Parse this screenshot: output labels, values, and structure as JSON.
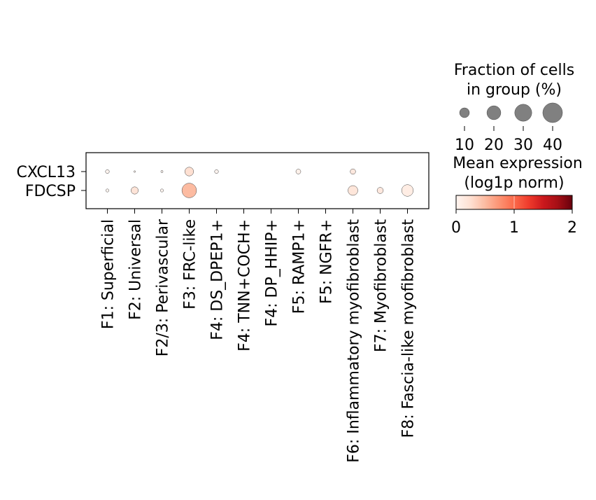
{
  "chart_data": {
    "type": "dotplot",
    "genes": [
      "CXCL13",
      "FDCSP"
    ],
    "groups": [
      "F1: Superficial",
      "F2: Universal",
      "F2/3: Perivascular",
      "F3: FRC-like",
      "F4: DS_DPEP1+",
      "F4: TNN+COCH+",
      "F4: DP_HHIP+",
      "F5: RAMP1+",
      "F5: NGFR+",
      "F6: Inflammatory myofibroblast",
      "F7: Myofibroblast",
      "F8: Fascia-like myofibroblast"
    ],
    "fraction_pct": [
      [
        1.5,
        0.3,
        0.5,
        8.0,
        1.5,
        0,
        0,
        2.5,
        0,
        3.0,
        0,
        0
      ],
      [
        1.0,
        5.5,
        1.0,
        22.0,
        0,
        0,
        0,
        0,
        0,
        10.0,
        4.0,
        14.0
      ]
    ],
    "mean_expression": [
      [
        0.0,
        0.0,
        0.0,
        0.25,
        0.0,
        0,
        0,
        0.05,
        0,
        0.15,
        0,
        0
      ],
      [
        0.0,
        0.2,
        0.0,
        0.5,
        0,
        0,
        0,
        0,
        0,
        0.18,
        0.15,
        0.1
      ]
    ],
    "size_legend": {
      "title_line1": "Fraction of cells",
      "title_line2": "in group (%)",
      "values": [
        10,
        20,
        30,
        40
      ],
      "labels": [
        "10",
        "20",
        "30",
        "40"
      ],
      "dot_color": "#808080"
    },
    "color_legend": {
      "title_line1": "Mean expression",
      "title_line2": "(log1p norm)",
      "vmin": 0,
      "vmax": 2,
      "ticks": [
        0,
        1,
        2
      ],
      "tick_labels": [
        "0",
        "1",
        "2"
      ],
      "colormap": "Reds",
      "colors": [
        "#fff5f0",
        "#fee0d2",
        "#fcbba1",
        "#fc9272",
        "#fb6a4a",
        "#ef3b2c",
        "#cb181d",
        "#a50f15",
        "#67000d"
      ]
    }
  }
}
